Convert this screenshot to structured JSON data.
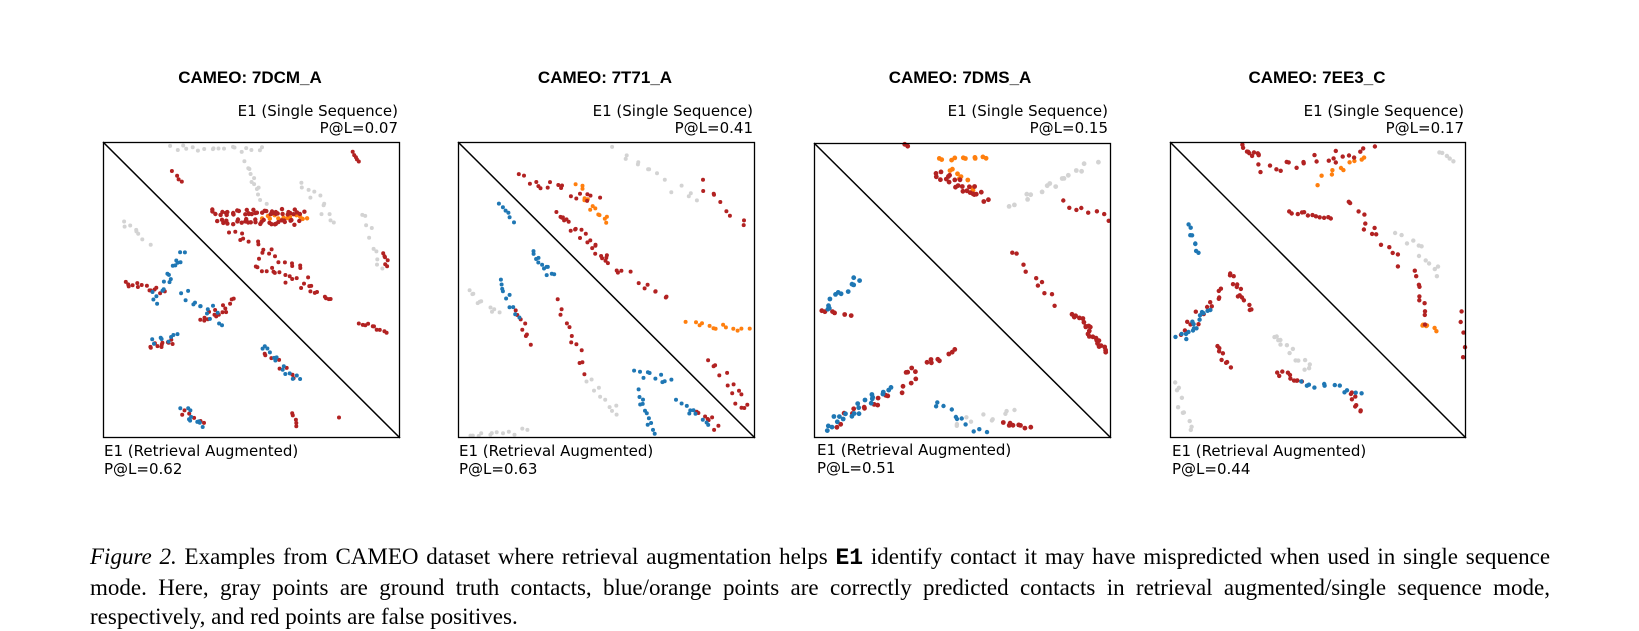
{
  "panels": [
    {
      "title": "CAMEO: 7DCM_A",
      "top_label": "E1 (Single Sequence)",
      "top_metric": "P@L=0.07",
      "bottom_label": "E1 (Retrieval Augmented)",
      "bottom_metric": "P@L=0.62"
    },
    {
      "title": "CAMEO: 7T71_A",
      "top_label": "E1 (Single Sequence)",
      "top_metric": "P@L=0.41",
      "bottom_label": "E1 (Retrieval Augmented)",
      "bottom_metric": "P@L=0.63"
    },
    {
      "title": "CAMEO: 7DMS_A",
      "top_label": "E1 (Single Sequence)",
      "top_metric": "P@L=0.15",
      "bottom_label": "E1 (Retrieval Augmented)",
      "bottom_metric": "P@L=0.51"
    },
    {
      "title": "CAMEO: 7EE3_C",
      "top_label": "E1 (Single Sequence)",
      "top_metric": "P@L=0.17",
      "bottom_label": "E1 (Retrieval Augmented)",
      "bottom_metric": "P@L=0.44"
    }
  ],
  "colors": {
    "ground_truth": "#d3d3d3",
    "retrieval_correct": "#1f77b4",
    "single_correct": "#ff7f0e",
    "false_positive": "#b22222"
  },
  "caption": {
    "label": "Figure 2.",
    "text_before": "Examples from CAMEO dataset where retrieval augmentation helps",
    "code": "E1",
    "text_after": "identify contact it may have mispredicted when used in single sequence mode. Here, gray points are ground truth contacts, blue/orange points are correctly predicted contacts in retrieval augmented/single sequence mode, respectively, and red points are false positives."
  }
}
